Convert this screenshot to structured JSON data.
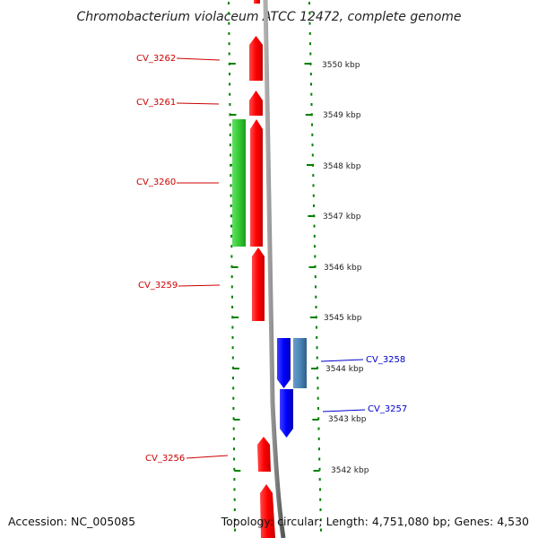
{
  "title": "Chromobacterium violaceum ATCC 12472, complete genome",
  "footer": {
    "accession": "Accession: NC_005085",
    "summary": "Topology: circular; Length: 4,751,080 bp; Genes: 4,530"
  },
  "colors": {
    "forward_gene": "#ff0000",
    "reverse_gene": "#0000ff",
    "rna_gene": "#33cc33",
    "reverse_alt_gene": "#4a86b8",
    "backbone": "#8a8a8a",
    "ticks": "#008000",
    "forward_label": "#cc0000",
    "reverse_label": "#0000cc"
  },
  "kbp_labels": [
    "3550 kbp",
    "3549 kbp",
    "3548 kbp",
    "3547 kbp",
    "3546 kbp",
    "3545 kbp",
    "3544 kbp",
    "3543 kbp",
    "3542 kbp"
  ],
  "gene_labels": [
    {
      "name": "CV_3262",
      "strand": "forward"
    },
    {
      "name": "CV_3261",
      "strand": "forward"
    },
    {
      "name": "CV_3260",
      "strand": "forward"
    },
    {
      "name": "CV_3259",
      "strand": "forward"
    },
    {
      "name": "CV_3258",
      "strand": "reverse"
    },
    {
      "name": "CV_3257",
      "strand": "reverse"
    },
    {
      "name": "CV_3256",
      "strand": "forward"
    }
  ]
}
